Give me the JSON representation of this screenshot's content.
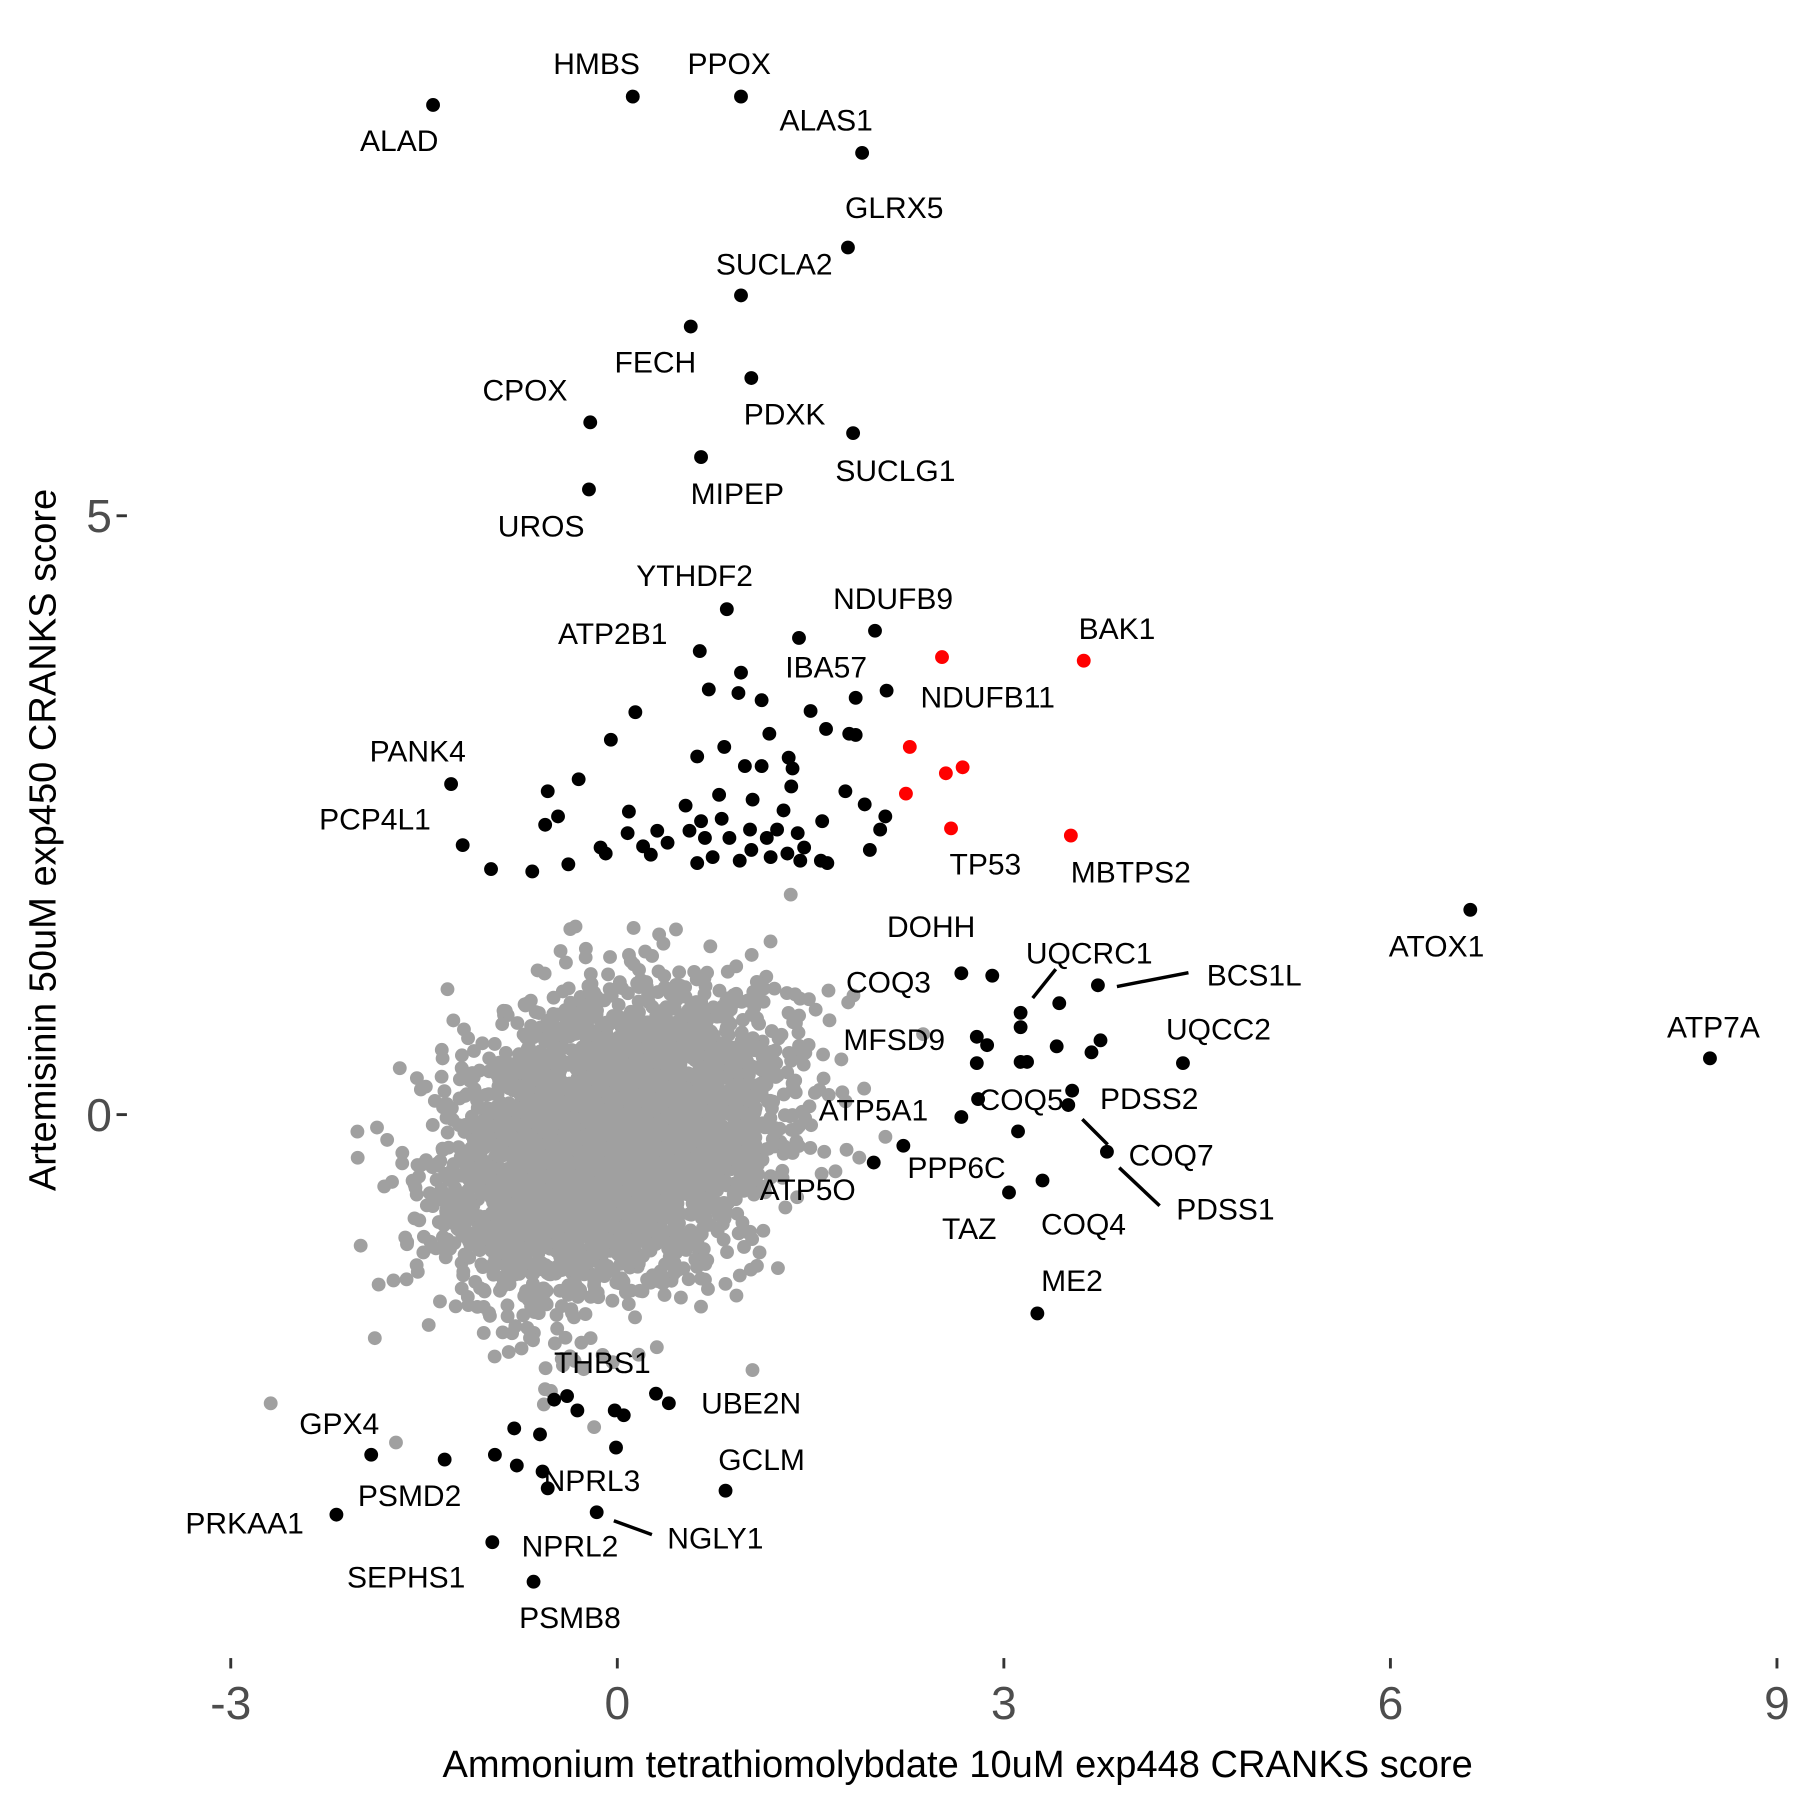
{
  "chart_data": {
    "type": "scatter",
    "title": "",
    "xlabel": "Ammonium tetrathiomolybdate 10uM exp448 CRANKS score",
    "ylabel": "Artemisinin 50uM exp450 CRANKS score",
    "xlim": [
      -3.2,
      9.1
    ],
    "ylim": [
      -4.5,
      8.8
    ],
    "xticks": [
      -3,
      0,
      3,
      6,
      9
    ],
    "xtick_labels": [
      "-3",
      "0",
      "3",
      "6",
      "9"
    ],
    "yticks": [
      0,
      5
    ],
    "ytick_labels": [
      "0",
      "5"
    ],
    "grid": false,
    "colors": {
      "background_genes": "#a0a0a0",
      "hit_genes": "#000000",
      "highlight_genes": "#ff0000"
    },
    "background_cloud": {
      "n": 4000,
      "mean_x": -0.04,
      "mean_y": -0.25,
      "sd_x": 0.62,
      "sd_y": 0.6,
      "corr": 0.3,
      "seed": 7
    },
    "labeled_genes": [
      {
        "name": "ALAD",
        "x": -1.43,
        "y": 8.43,
        "color": "#000000"
      },
      {
        "name": "HMBS",
        "x": 0.12,
        "y": 8.5,
        "color": "#000000"
      },
      {
        "name": "PPOX",
        "x": 0.96,
        "y": 8.5,
        "color": "#000000"
      },
      {
        "name": "ALAS1",
        "x": 1.9,
        "y": 8.03,
        "color": "#000000"
      },
      {
        "name": "GLRX5",
        "x": 1.79,
        "y": 7.24,
        "color": "#000000"
      },
      {
        "name": "SUCLA2",
        "x": 0.96,
        "y": 6.84,
        "color": "#000000"
      },
      {
        "name": "FECH",
        "x": 0.57,
        "y": 6.58,
        "color": "#000000"
      },
      {
        "name": "PDXK",
        "x": 1.04,
        "y": 6.15,
        "color": "#000000"
      },
      {
        "name": "CPOX",
        "x": -0.21,
        "y": 5.78,
        "color": "#000000"
      },
      {
        "name": "SUCLG1",
        "x": 1.83,
        "y": 5.69,
        "color": "#000000"
      },
      {
        "name": "MIPEP",
        "x": 0.65,
        "y": 5.49,
        "color": "#000000"
      },
      {
        "name": "UROS",
        "x": -0.22,
        "y": 5.22,
        "color": "#000000"
      },
      {
        "name": "YTHDF2",
        "x": 0.85,
        "y": 4.22,
        "color": "#000000"
      },
      {
        "name": "ATP2B1",
        "x": 0.64,
        "y": 3.87,
        "color": "#000000"
      },
      {
        "name": "NDUFB9",
        "x": 2.0,
        "y": 4.04,
        "color": "#000000"
      },
      {
        "name": "IBA57",
        "x": 1.41,
        "y": 3.98,
        "color": "#000000"
      },
      {
        "name": "NDUFB11",
        "x": 2.09,
        "y": 3.54,
        "color": "#000000"
      },
      {
        "name": "BAK1",
        "x": 3.62,
        "y": 3.79,
        "color": "#ff0000"
      },
      {
        "name": "TP53",
        "x": 2.59,
        "y": 2.39,
        "color": "#ff0000"
      },
      {
        "name": "MBTPS2",
        "x": 3.52,
        "y": 2.33,
        "color": "#ff0000"
      },
      {
        "name": "PANK4",
        "x": -1.29,
        "y": 2.76,
        "color": "#000000"
      },
      {
        "name": "PCP4L1",
        "x": -1.2,
        "y": 2.25,
        "color": "#000000"
      },
      {
        "name": "ATOX1",
        "x": 6.62,
        "y": 1.71,
        "color": "#000000"
      },
      {
        "name": "ATP7A",
        "x": 8.48,
        "y": 0.47,
        "color": "#000000"
      },
      {
        "name": "DOHH",
        "x": 2.91,
        "y": 1.16,
        "color": "#000000"
      },
      {
        "name": "COQ3",
        "x": 2.67,
        "y": 1.18,
        "color": "#000000"
      },
      {
        "name": "UQCRC1",
        "x": 3.13,
        "y": 0.85,
        "color": "#000000"
      },
      {
        "name": "BCS1L",
        "x": 3.73,
        "y": 1.08,
        "color": "#000000"
      },
      {
        "name": "UQCC2",
        "x": 4.39,
        "y": 0.43,
        "color": "#000000"
      },
      {
        "name": "MFSD9",
        "x": 2.79,
        "y": 0.65,
        "color": "#000000"
      },
      {
        "name": "COQ5",
        "x": 2.8,
        "y": 0.13,
        "color": "#000000"
      },
      {
        "name": "PDSS2",
        "x": 3.53,
        "y": 0.2,
        "color": "#000000"
      },
      {
        "name": "ATP5A1",
        "x": 2.67,
        "y": -0.02,
        "color": "#000000"
      },
      {
        "name": "COQ7",
        "x": 3.5,
        "y": 0.08,
        "color": "#000000"
      },
      {
        "name": "PDSS1",
        "x": 3.8,
        "y": -0.31,
        "color": "#000000"
      },
      {
        "name": "PPP6C",
        "x": 2.22,
        "y": -0.26,
        "color": "#000000"
      },
      {
        "name": "ATP5O",
        "x": 1.99,
        "y": -0.4,
        "color": "#000000"
      },
      {
        "name": "TAZ",
        "x": 3.04,
        "y": -0.65,
        "color": "#000000"
      },
      {
        "name": "COQ4",
        "x": 3.3,
        "y": -0.55,
        "color": "#000000"
      },
      {
        "name": "ME2",
        "x": 3.26,
        "y": -1.66,
        "color": "#000000"
      },
      {
        "name": "THBS1",
        "x": -0.49,
        "y": -2.38,
        "color": "#000000"
      },
      {
        "name": "UBE2N",
        "x": 0.4,
        "y": -2.41,
        "color": "#000000"
      },
      {
        "name": "GCLM",
        "x": 0.84,
        "y": -3.14,
        "color": "#000000"
      },
      {
        "name": "GPX4",
        "x": -1.91,
        "y": -2.84,
        "color": "#000000"
      },
      {
        "name": "PSMD2",
        "x": -1.34,
        "y": -2.88,
        "color": "#000000"
      },
      {
        "name": "PRKAA1",
        "x": -2.18,
        "y": -3.34,
        "color": "#000000"
      },
      {
        "name": "NPRL3",
        "x": -0.54,
        "y": -3.12,
        "color": "#000000"
      },
      {
        "name": "NGLY1",
        "x": -0.16,
        "y": -3.32,
        "color": "#000000"
      },
      {
        "name": "NPRL2",
        "x": -0.97,
        "y": -3.57,
        "color": "#000000"
      },
      {
        "name": "SEPHS1",
        "x": -0.8,
        "y": -2.62,
        "color": "#000000"
      },
      {
        "name": "PSMB8",
        "x": -0.65,
        "y": -3.9,
        "color": "#000000"
      }
    ],
    "unlabeled_highlight_points": [
      [
        2.52,
        3.82
      ],
      [
        2.27,
        3.07
      ],
      [
        2.55,
        2.85
      ],
      [
        2.68,
        2.9
      ],
      [
        2.24,
        2.68
      ]
    ],
    "unlabeled_hit_points": [
      [
        0.96,
        3.69
      ],
      [
        0.71,
        3.55
      ],
      [
        0.94,
        3.52
      ],
      [
        1.12,
        3.46
      ],
      [
        1.5,
        3.37
      ],
      [
        1.85,
        3.48
      ],
      [
        1.62,
        3.22
      ],
      [
        1.8,
        3.18
      ],
      [
        1.85,
        3.17
      ],
      [
        0.83,
        3.07
      ],
      [
        1.18,
        3.18
      ],
      [
        0.62,
        2.99
      ],
      [
        0.99,
        2.91
      ],
      [
        1.12,
        2.91
      ],
      [
        1.33,
        2.98
      ],
      [
        1.36,
        2.89
      ],
      [
        -0.05,
        3.13
      ],
      [
        0.14,
        3.36
      ],
      [
        1.77,
        2.7
      ],
      [
        1.92,
        2.59
      ],
      [
        2.08,
        2.49
      ],
      [
        2.04,
        2.38
      ],
      [
        -0.3,
        2.8
      ],
      [
        -0.54,
        2.7
      ],
      [
        -0.46,
        2.49
      ],
      [
        -0.56,
        2.42
      ],
      [
        0.53,
        2.58
      ],
      [
        0.79,
        2.67
      ],
      [
        1.05,
        2.63
      ],
      [
        1.29,
        2.54
      ],
      [
        1.35,
        2.74
      ],
      [
        0.81,
        2.47
      ],
      [
        0.65,
        2.45
      ],
      [
        0.56,
        2.37
      ],
      [
        0.31,
        2.37
      ],
      [
        0.39,
        2.27
      ],
      [
        0.09,
        2.53
      ],
      [
        0.08,
        2.35
      ],
      [
        0.2,
        2.24
      ],
      [
        -0.13,
        2.23
      ],
      [
        -0.09,
        2.18
      ],
      [
        0.26,
        2.17
      ],
      [
        0.68,
        2.31
      ],
      [
        0.87,
        2.31
      ],
      [
        1.03,
        2.38
      ],
      [
        1.16,
        2.31
      ],
      [
        1.24,
        2.38
      ],
      [
        1.4,
        2.35
      ],
      [
        1.59,
        2.45
      ],
      [
        1.45,
        2.23
      ],
      [
        1.58,
        2.12
      ],
      [
        1.96,
        2.21
      ],
      [
        0.62,
        2.1
      ],
      [
        0.74,
        2.15
      ],
      [
        0.95,
        2.12
      ],
      [
        1.32,
        2.18
      ],
      [
        1.42,
        2.12
      ],
      [
        1.63,
        2.1
      ],
      [
        -0.38,
        2.09
      ],
      [
        -0.66,
        2.03
      ],
      [
        -0.98,
        2.05
      ],
      [
        1.19,
        2.15
      ],
      [
        1.04,
        2.21
      ],
      [
        3.13,
        0.73
      ],
      [
        3.43,
        0.93
      ],
      [
        2.87,
        0.58
      ],
      [
        2.79,
        0.43
      ],
      [
        3.13,
        0.44
      ],
      [
        3.18,
        0.44
      ],
      [
        3.41,
        0.57
      ],
      [
        3.68,
        0.52
      ],
      [
        3.75,
        0.62
      ],
      [
        3.11,
        -0.14
      ],
      [
        -0.39,
        -2.35
      ],
      [
        -0.31,
        -2.47
      ],
      [
        -0.02,
        -2.47
      ],
      [
        0.05,
        -2.51
      ],
      [
        0.3,
        -2.33
      ],
      [
        -0.6,
        -2.67
      ],
      [
        -0.01,
        -2.78
      ],
      [
        -0.95,
        -2.84
      ],
      [
        -0.78,
        -2.93
      ],
      [
        -0.58,
        -2.98
      ]
    ]
  }
}
